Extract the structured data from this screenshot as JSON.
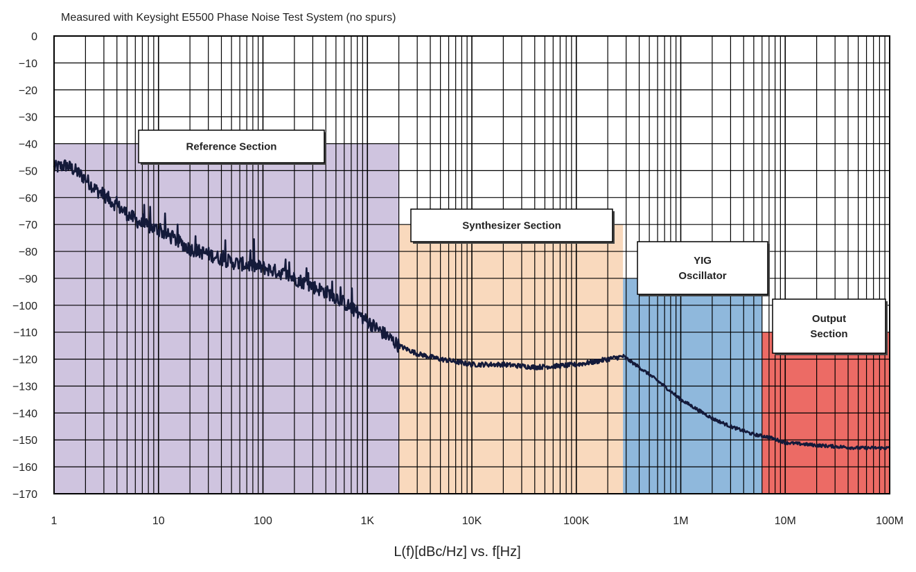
{
  "chart_data": {
    "type": "line",
    "title": "",
    "subtitle": "Measured with Keysight E5500 Phase Noise Test System (no spurs)",
    "xlabel": "L(f)[dBc/Hz] vs. f[Hz]",
    "ylabel": "",
    "x_scale": "log",
    "xlim": [
      1,
      100000000
    ],
    "ylim": [
      -170,
      0
    ],
    "grid": true,
    "x_ticks": [
      {
        "value": 1,
        "label": "1"
      },
      {
        "value": 10,
        "label": "10"
      },
      {
        "value": 100,
        "label": "100"
      },
      {
        "value": 1000,
        "label": "1K"
      },
      {
        "value": 10000,
        "label": "10K"
      },
      {
        "value": 100000,
        "label": "100K"
      },
      {
        "value": 1000000,
        "label": "1M"
      },
      {
        "value": 10000000,
        "label": "10M"
      },
      {
        "value": 100000000,
        "label": "100M"
      }
    ],
    "y_ticks": [
      {
        "value": 0,
        "label": "0"
      },
      {
        "value": -10,
        "label": "−10"
      },
      {
        "value": -20,
        "label": "−20"
      },
      {
        "value": -30,
        "label": "−30"
      },
      {
        "value": -40,
        "label": "−40"
      },
      {
        "value": -50,
        "label": "−50"
      },
      {
        "value": -60,
        "label": "−60"
      },
      {
        "value": -70,
        "label": "−70"
      },
      {
        "value": -80,
        "label": "−80"
      },
      {
        "value": -90,
        "label": "−90"
      },
      {
        "value": -100,
        "label": "−100"
      },
      {
        "value": -110,
        "label": "−110"
      },
      {
        "value": -120,
        "label": "−120"
      },
      {
        "value": -130,
        "label": "−130"
      },
      {
        "value": -140,
        "label": "−140"
      },
      {
        "value": -150,
        "label": "−150"
      },
      {
        "value": -160,
        "label": "−160"
      },
      {
        "value": -170,
        "label": "−170"
      }
    ],
    "regions": [
      {
        "label": "Reference Section",
        "x_start": 1,
        "x_end": 2000,
        "top": -40,
        "color": "#cfc4df"
      },
      {
        "label": "Synthesizer Section",
        "x_start": 2000,
        "x_end": 280000,
        "top": -70,
        "color": "#f9d9bd"
      },
      {
        "label": "YIG\nOscillator",
        "x_start": 280000,
        "x_end": 6000000,
        "top": -90,
        "color": "#8fb8dc"
      },
      {
        "label": "Output\nSection",
        "x_start": 6000000,
        "x_end": 100000000,
        "top": -110,
        "color": "#ec6b65"
      }
    ],
    "series": [
      {
        "color": "#141a3a",
        "points": [
          [
            1,
            -49
          ],
          [
            1.3,
            -48
          ],
          [
            1.6,
            -50
          ],
          [
            2,
            -53
          ],
          [
            2.5,
            -57
          ],
          [
            3,
            -59
          ],
          [
            4,
            -63
          ],
          [
            5,
            -66
          ],
          [
            7,
            -70
          ],
          [
            10,
            -72
          ],
          [
            15,
            -76
          ],
          [
            20,
            -79
          ],
          [
            30,
            -81
          ],
          [
            50,
            -84
          ],
          [
            70,
            -85
          ],
          [
            100,
            -86
          ],
          [
            150,
            -88
          ],
          [
            200,
            -90
          ],
          [
            300,
            -93
          ],
          [
            400,
            -95
          ],
          [
            500,
            -97
          ],
          [
            700,
            -101
          ],
          [
            1000,
            -106
          ],
          [
            1500,
            -111
          ],
          [
            2000,
            -115
          ],
          [
            3000,
            -118
          ],
          [
            5000,
            -120
          ],
          [
            10000,
            -122
          ],
          [
            20000,
            -122
          ],
          [
            40000,
            -123
          ],
          [
            70000,
            -122.5
          ],
          [
            100000,
            -122
          ],
          [
            150000,
            -121
          ],
          [
            200000,
            -120
          ],
          [
            280000,
            -119
          ],
          [
            400000,
            -123
          ],
          [
            600000,
            -128
          ],
          [
            1000000,
            -135
          ],
          [
            2000000,
            -142
          ],
          [
            3000000,
            -145
          ],
          [
            5000000,
            -148
          ],
          [
            7000000,
            -149
          ],
          [
            10000000,
            -151
          ],
          [
            20000000,
            -152
          ],
          [
            50000000,
            -153
          ],
          [
            100000000,
            -153
          ]
        ]
      }
    ]
  }
}
